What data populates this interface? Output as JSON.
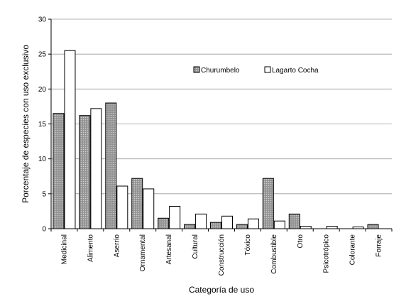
{
  "chart_data": {
    "type": "bar",
    "title": "",
    "xlabel": "Categoría de uso",
    "ylabel": "Porcentaje de especies con uso exclusivo",
    "ylim": [
      0,
      30
    ],
    "yticks": [
      0,
      5,
      10,
      15,
      20,
      25,
      30
    ],
    "grid": true,
    "legend_position": "top-center",
    "categories": [
      "Medicinal",
      "Alimento",
      "Aserrío",
      "Ornamental",
      "Artesanal",
      "Cultural",
      "Construcción",
      "Tóxico",
      "Combustible",
      "Otro",
      "Psicotrópico",
      "Colorante",
      "Forraje"
    ],
    "series": [
      {
        "name": "Churumbelo",
        "color": "#a6a6a6",
        "pattern": "dotted-gray",
        "values": [
          16.5,
          16.2,
          18.0,
          7.2,
          1.5,
          0.6,
          0.9,
          0.6,
          7.2,
          2.1,
          0.0,
          0.0,
          0.6
        ]
      },
      {
        "name": "Lagarto Cocha",
        "color": "#ffffff",
        "pattern": "solid-white",
        "values": [
          25.5,
          17.2,
          6.1,
          5.7,
          3.2,
          2.1,
          1.8,
          1.4,
          1.1,
          0.35,
          0.35,
          0.25,
          0.0
        ]
      }
    ]
  }
}
